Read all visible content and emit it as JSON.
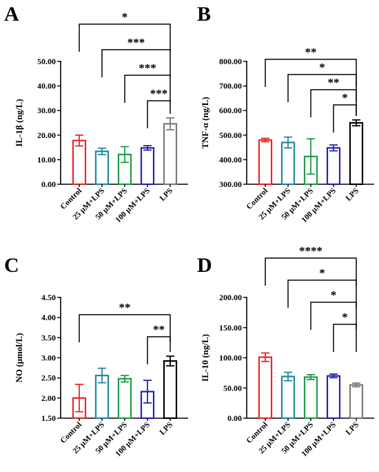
{
  "colors": [
    "#e8262b",
    "#1e87a0",
    "#1f9a4a",
    "#2323b0",
    "#7a7a7a"
  ],
  "chart_data": [
    {
      "type": "bar",
      "panel": "A",
      "ylabel": "IL-1β (ng/L)",
      "categories": [
        "Control",
        "25 μM+LPS",
        "50 μM+LPS",
        "100 μM+LPS",
        "LPS"
      ],
      "values": [
        17.8,
        13.4,
        12.1,
        14.8,
        24.6
      ],
      "errors": [
        2.2,
        1.3,
        3.2,
        0.9,
        2.4
      ],
      "ylim": [
        0,
        50
      ],
      "yticks": [
        "0.00",
        "10.00",
        "20.00",
        "30.00",
        "40.00",
        "50.00"
      ],
      "bar_colors": [
        "#e8262b",
        "#1e87a0",
        "#1f9a4a",
        "#2323b0",
        "#7a7a7a"
      ],
      "comparisons": [
        {
          "from": 0,
          "to": 4,
          "label": "*"
        },
        {
          "from": 1,
          "to": 4,
          "label": "***"
        },
        {
          "from": 2,
          "to": 4,
          "label": "***"
        },
        {
          "from": 3,
          "to": 4,
          "label": "***"
        }
      ]
    },
    {
      "type": "bar",
      "panel": "B",
      "ylabel": "TNF-α (ng/L)",
      "categories": [
        "Control",
        "25 μM+LPS",
        "50 μM+LPS",
        "100 μM+LPS",
        "LPS"
      ],
      "values": [
        480,
        470,
        413,
        448,
        550
      ],
      "errors": [
        7,
        22,
        72,
        12,
        12
      ],
      "ylim": [
        300,
        800
      ],
      "yticks": [
        "300.00",
        "400.00",
        "500.00",
        "600.00",
        "700.00",
        "800.00"
      ],
      "bar_colors": [
        "#e8262b",
        "#1e87a0",
        "#1f9a4a",
        "#2323b0",
        "#000000"
      ],
      "comparisons": [
        {
          "from": 0,
          "to": 4,
          "label": "**"
        },
        {
          "from": 1,
          "to": 4,
          "label": "*"
        },
        {
          "from": 2,
          "to": 4,
          "label": "**"
        },
        {
          "from": 3,
          "to": 4,
          "label": "*"
        }
      ]
    },
    {
      "type": "bar",
      "panel": "C",
      "ylabel": "NO (μmol/L)",
      "categories": [
        "Control",
        "25 μM+LPS",
        "50 μM+LPS",
        "100 μM+LPS",
        "LPS"
      ],
      "values": [
        2.0,
        2.56,
        2.48,
        2.16,
        2.92
      ],
      "errors": [
        0.34,
        0.18,
        0.08,
        0.28,
        0.12
      ],
      "ylim": [
        1.5,
        4.5
      ],
      "yticks": [
        "1.50",
        "2.00",
        "2.50",
        "3.00",
        "3.50",
        "4.00",
        "4.50"
      ],
      "bar_colors": [
        "#e8262b",
        "#1e87a0",
        "#1f9a4a",
        "#2323b0",
        "#000000"
      ],
      "comparisons": [
        {
          "from": 0,
          "to": 4,
          "label": "**"
        },
        {
          "from": 3,
          "to": 4,
          "label": "**"
        }
      ]
    },
    {
      "type": "bar",
      "panel": "D",
      "ylabel": "IL-10 (ng/L)",
      "categories": [
        "Control",
        "25 μM+LPS",
        "50 μM+LPS",
        "100 μM+LPS",
        "LPS"
      ],
      "values": [
        101,
        69,
        68,
        70,
        55
      ],
      "errors": [
        7,
        7,
        4,
        3,
        3
      ],
      "ylim": [
        0,
        200
      ],
      "yticks": [
        "0.00",
        "50.00",
        "100.00",
        "150.00",
        "200.00"
      ],
      "bar_colors": [
        "#e8262b",
        "#1e87a0",
        "#1f9a4a",
        "#2323b0",
        "#7a7a7a"
      ],
      "comparisons": [
        {
          "from": 0,
          "to": 4,
          "label": "****"
        },
        {
          "from": 1,
          "to": 4,
          "label": "*"
        },
        {
          "from": 2,
          "to": 4,
          "label": "*"
        },
        {
          "from": 3,
          "to": 4,
          "label": "*"
        }
      ]
    }
  ]
}
